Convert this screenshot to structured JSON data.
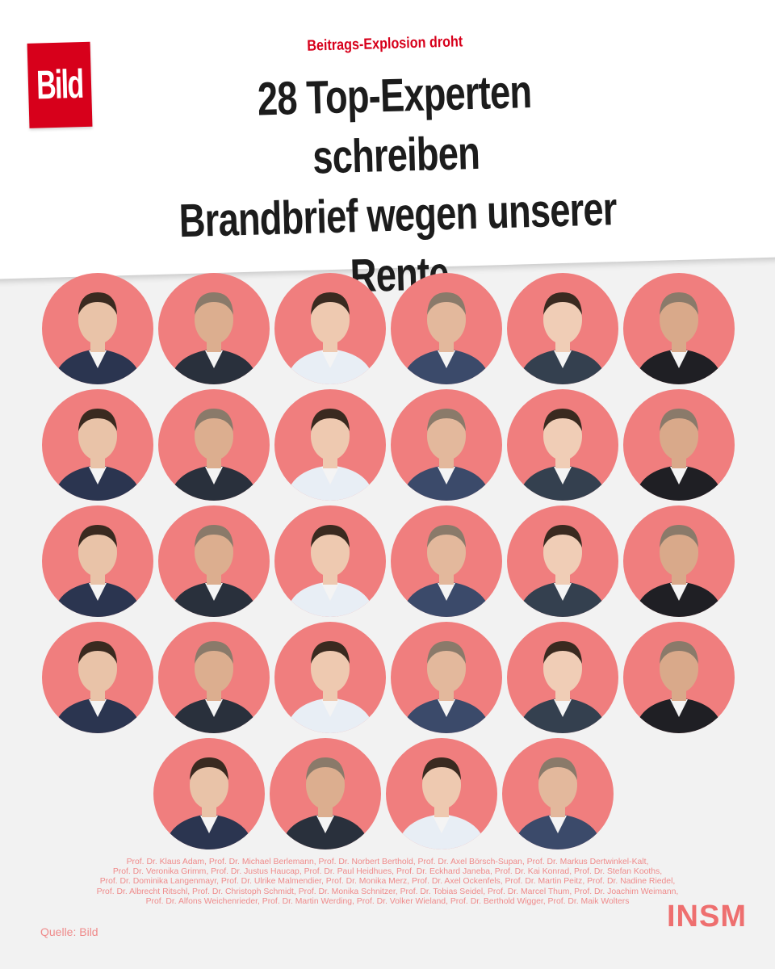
{
  "clipping": {
    "logo": "Bild",
    "kicker": "Beitrags-Explosion droht",
    "headline_lines": [
      "28 Top-Experten schreiben",
      "Brandbrief wegen unserer",
      "Rente"
    ]
  },
  "portraits": {
    "rows": [
      6,
      6,
      6,
      6,
      4
    ],
    "circle_color": "#f07e7e",
    "icon": "person-portrait-icon"
  },
  "names": {
    "lines": [
      "Prof. Dr. Klaus Adam, Prof. Dr. Michael Berlemann, Prof. Dr. Norbert Berthold, Prof. Dr. Axel Börsch-Supan, Prof. Dr. Markus Dertwinkel-Kalt,",
      "Prof. Dr. Veronika Grimm, Prof. Dr. Justus Haucap, Prof. Dr. Paul Heidhues, Prof. Dr. Eckhard Janeba, Prof. Dr. Kai Konrad, Prof. Dr. Stefan Kooths,",
      "Prof. Dr. Dominika Langenmayr, Prof. Dr. Ulrike Malmendier, Prof. Dr. Monika Merz, Prof. Dr. Axel Ockenfels, Prof. Dr. Martin Peitz, Prof. Dr. Nadine Riedel,",
      "Prof. Dr. Albrecht Ritschl, Prof. Dr. Christoph Schmidt, Prof. Dr. Monika Schnitzer, Prof. Dr. Tobias Seidel, Prof. Dr. Marcel Thum, Prof. Dr. Joachim Weimann,",
      "Prof. Dr. Alfons Weichenrieder, Prof. Dr. Martin Werding, Prof. Dr. Volker Wieland, Prof. Dr. Berthold Wigger, Prof. Dr. Maik Wolters"
    ]
  },
  "footer": {
    "source": "Quelle: Bild",
    "brand": "INSM"
  },
  "colors": {
    "bild_red": "#d7001b",
    "salmon": "#f07e7e",
    "name_text": "#ef8b8b",
    "insm": "#ee6f6f"
  }
}
